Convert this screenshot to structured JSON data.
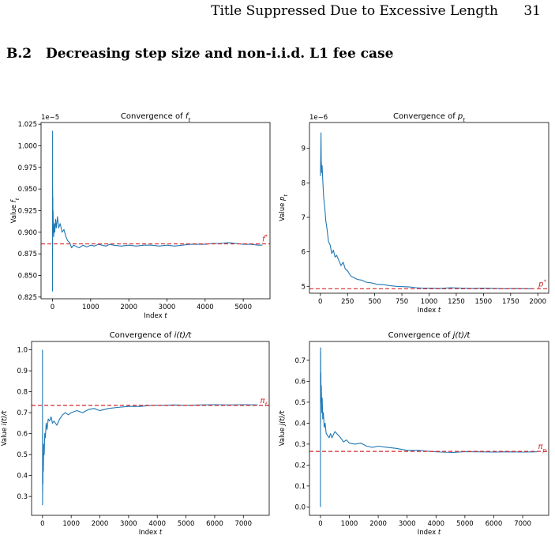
{
  "header": {
    "running_title": "Title Suppressed Due to Excessive Length",
    "page_number": "31"
  },
  "section": {
    "number": "B.2",
    "title": "Decreasing step size and non-i.i.d. L1 fee case"
  },
  "colors": {
    "series": "#1f77b4",
    "reference": "#d62728"
  },
  "chart_data": [
    {
      "type": "line",
      "title_prefix": "Convergence of ",
      "title_math": "f",
      "title_sub": "t",
      "xlabel_prefix": "Index ",
      "xlabel_math": "t",
      "ylabel_prefix": "Value ",
      "ylabel_math": "f",
      "ylabel_sub": "t",
      "offset_text": "1e−5",
      "ref_label": "f",
      "ref_sup": "*",
      "ref_sub": "",
      "xlim": [
        -300,
        5700
      ],
      "ylim": [
        0.823,
        1.027
      ],
      "xticks": [
        0,
        1000,
        2000,
        3000,
        4000,
        5000
      ],
      "xtick_labels": [
        "0",
        "1000",
        "2000",
        "3000",
        "4000",
        "5000"
      ],
      "yticks": [
        0.825,
        0.85,
        0.875,
        0.9,
        0.925,
        0.95,
        0.975,
        1.0,
        1.025
      ],
      "ytick_labels": [
        "0.825",
        "0.850",
        "0.875",
        "0.900",
        "0.925",
        "0.950",
        "0.975",
        "1.000",
        "1.025"
      ],
      "reference_value": 0.8865,
      "series": [
        {
          "x": [
            0,
            1,
            2,
            3,
            4,
            6,
            8,
            10,
            14,
            20,
            30,
            45,
            60,
            80,
            100,
            130,
            160,
            200,
            250,
            300,
            350,
            400,
            450,
            500,
            550,
            600,
            700,
            800,
            900,
            1000,
            1100,
            1200,
            1300,
            1400,
            1500,
            1600,
            1800,
            2000,
            2200,
            2400,
            2600,
            2800,
            3000,
            3200,
            3400,
            3600,
            3800,
            4000,
            4200,
            4400,
            4600,
            4800,
            5000,
            5200,
            5400,
            5500
          ],
          "y": [
            0.86,
            0.832,
            1.017,
            0.87,
            0.95,
            0.905,
            0.94,
            0.9,
            0.925,
            0.905,
            0.895,
            0.91,
            0.9,
            0.915,
            0.905,
            0.918,
            0.905,
            0.91,
            0.9,
            0.903,
            0.895,
            0.89,
            0.888,
            0.882,
            0.885,
            0.884,
            0.882,
            0.885,
            0.883,
            0.885,
            0.884,
            0.886,
            0.885,
            0.884,
            0.886,
            0.885,
            0.884,
            0.885,
            0.884,
            0.885,
            0.885,
            0.884,
            0.885,
            0.884,
            0.885,
            0.886,
            0.886,
            0.886,
            0.887,
            0.887,
            0.888,
            0.887,
            0.886,
            0.886,
            0.885,
            0.885
          ]
        }
      ]
    },
    {
      "type": "line",
      "title_prefix": "Convergence of ",
      "title_math": "p",
      "title_sub": "t",
      "xlabel_prefix": "Index ",
      "xlabel_math": "t",
      "ylabel_prefix": "Value ",
      "ylabel_math": "p",
      "ylabel_sub": "t",
      "offset_text": "1e−6",
      "ref_label": "p",
      "ref_sup": "*",
      "ref_sub": "",
      "xlim": [
        -100,
        2100
      ],
      "ylim": [
        4.8,
        9.75
      ],
      "xticks": [
        0,
        250,
        500,
        750,
        1000,
        1250,
        1500,
        1750,
        2000
      ],
      "xtick_labels": [
        "0",
        "250",
        "500",
        "750",
        "1000",
        "1250",
        "1500",
        "1750",
        "2000"
      ],
      "yticks": [
        5,
        6,
        7,
        8,
        9
      ],
      "ytick_labels": [
        "5",
        "6",
        "7",
        "8",
        "9"
      ],
      "reference_value": 4.93,
      "series": [
        {
          "x": [
            0,
            3,
            6,
            8,
            12,
            16,
            22,
            30,
            40,
            50,
            60,
            75,
            90,
            105,
            120,
            135,
            150,
            170,
            190,
            210,
            230,
            250,
            280,
            310,
            340,
            380,
            420,
            470,
            520,
            580,
            640,
            700,
            760,
            820,
            880,
            940,
            1000,
            1100,
            1200,
            1300,
            1400,
            1500,
            1600,
            1700,
            1800,
            1900,
            1950
          ],
          "y": [
            8.2,
            8.6,
            9.45,
            8.7,
            8.3,
            8.5,
            8.1,
            7.6,
            7.3,
            6.9,
            6.7,
            6.3,
            6.2,
            5.95,
            6.05,
            5.85,
            5.9,
            5.75,
            5.6,
            5.7,
            5.5,
            5.45,
            5.3,
            5.25,
            5.2,
            5.18,
            5.12,
            5.1,
            5.06,
            5.05,
            5.02,
            5.0,
            4.99,
            4.98,
            4.96,
            4.95,
            4.95,
            4.94,
            4.96,
            4.95,
            4.94,
            4.95,
            4.94,
            4.93,
            4.94,
            4.93,
            4.93
          ]
        }
      ]
    },
    {
      "type": "line",
      "title_prefix": "Convergence of ",
      "title_math": "i(t)/t",
      "title_sub": "",
      "xlabel_prefix": "Index ",
      "xlabel_math": "t",
      "ylabel_prefix": "Value ",
      "ylabel_math": "i(t)/t",
      "ylabel_sub": "",
      "offset_text": "",
      "ref_label": "π",
      "ref_sup": "",
      "ref_sub": "f",
      "xlim": [
        -380,
        7900
      ],
      "ylim": [
        0.21,
        1.04
      ],
      "xticks": [
        0,
        1000,
        2000,
        3000,
        4000,
        5000,
        6000,
        7000
      ],
      "xtick_labels": [
        "0",
        "1000",
        "2000",
        "3000",
        "4000",
        "5000",
        "6000",
        "7000"
      ],
      "yticks": [
        0.3,
        0.4,
        0.5,
        0.6,
        0.7,
        0.8,
        0.9,
        1.0
      ],
      "ytick_labels": [
        "0.3",
        "0.4",
        "0.5",
        "0.6",
        "0.7",
        "0.8",
        "0.9",
        "1.0"
      ],
      "reference_value": 0.735,
      "series": [
        {
          "x": [
            0,
            2,
            4,
            6,
            10,
            15,
            20,
            30,
            45,
            60,
            80,
            100,
            130,
            160,
            200,
            250,
            300,
            350,
            400,
            500,
            600,
            700,
            800,
            900,
            1000,
            1200,
            1400,
            1600,
            1800,
            2000,
            2300,
            2600,
            3000,
            3400,
            3800,
            4200,
            4600,
            5000,
            5500,
            6000,
            6500,
            7000,
            7500
          ],
          "y": [
            1.0,
            0.26,
            0.6,
            0.32,
            0.45,
            0.36,
            0.5,
            0.42,
            0.55,
            0.5,
            0.6,
            0.58,
            0.65,
            0.62,
            0.67,
            0.66,
            0.68,
            0.65,
            0.66,
            0.64,
            0.67,
            0.69,
            0.7,
            0.69,
            0.7,
            0.71,
            0.7,
            0.715,
            0.72,
            0.71,
            0.72,
            0.725,
            0.73,
            0.73,
            0.735,
            0.735,
            0.737,
            0.735,
            0.737,
            0.738,
            0.737,
            0.738,
            0.737
          ]
        }
      ]
    },
    {
      "type": "line",
      "title_prefix": "Convergence of ",
      "title_math": "j(t)/t",
      "title_sub": "",
      "xlabel_prefix": "Index ",
      "xlabel_math": "t",
      "ylabel_prefix": "Value ",
      "ylabel_math": "j(t)/t",
      "ylabel_sub": "",
      "offset_text": "",
      "ref_label": "π",
      "ref_sup": "",
      "ref_sub": "p",
      "xlim": [
        -380,
        7900
      ],
      "ylim": [
        -0.04,
        0.79
      ],
      "xticks": [
        0,
        1000,
        2000,
        3000,
        4000,
        5000,
        6000,
        7000
      ],
      "xtick_labels": [
        "0",
        "1000",
        "2000",
        "3000",
        "4000",
        "5000",
        "6000",
        "7000"
      ],
      "yticks": [
        0.0,
        0.1,
        0.2,
        0.3,
        0.4,
        0.5,
        0.6,
        0.7
      ],
      "ytick_labels": [
        "0.0",
        "0.1",
        "0.2",
        "0.3",
        "0.4",
        "0.5",
        "0.6",
        "0.7"
      ],
      "reference_value": 0.265,
      "series": [
        {
          "x": [
            0,
            2,
            4,
            6,
            10,
            15,
            20,
            30,
            45,
            60,
            80,
            100,
            130,
            160,
            200,
            250,
            300,
            350,
            400,
            500,
            600,
            700,
            800,
            900,
            1000,
            1200,
            1400,
            1600,
            1800,
            2000,
            2300,
            2600,
            3000,
            3400,
            3800,
            4200,
            4600,
            5000,
            5500,
            6000,
            6500,
            7000,
            7500
          ],
          "y": [
            0.0,
            0.74,
            0.4,
            0.76,
            0.55,
            0.64,
            0.5,
            0.58,
            0.45,
            0.52,
            0.42,
            0.45,
            0.38,
            0.4,
            0.35,
            0.34,
            0.33,
            0.35,
            0.33,
            0.36,
            0.345,
            0.33,
            0.31,
            0.32,
            0.305,
            0.3,
            0.305,
            0.29,
            0.285,
            0.29,
            0.285,
            0.28,
            0.27,
            0.27,
            0.265,
            0.262,
            0.26,
            0.264,
            0.263,
            0.262,
            0.263,
            0.262,
            0.263
          ]
        }
      ]
    }
  ]
}
